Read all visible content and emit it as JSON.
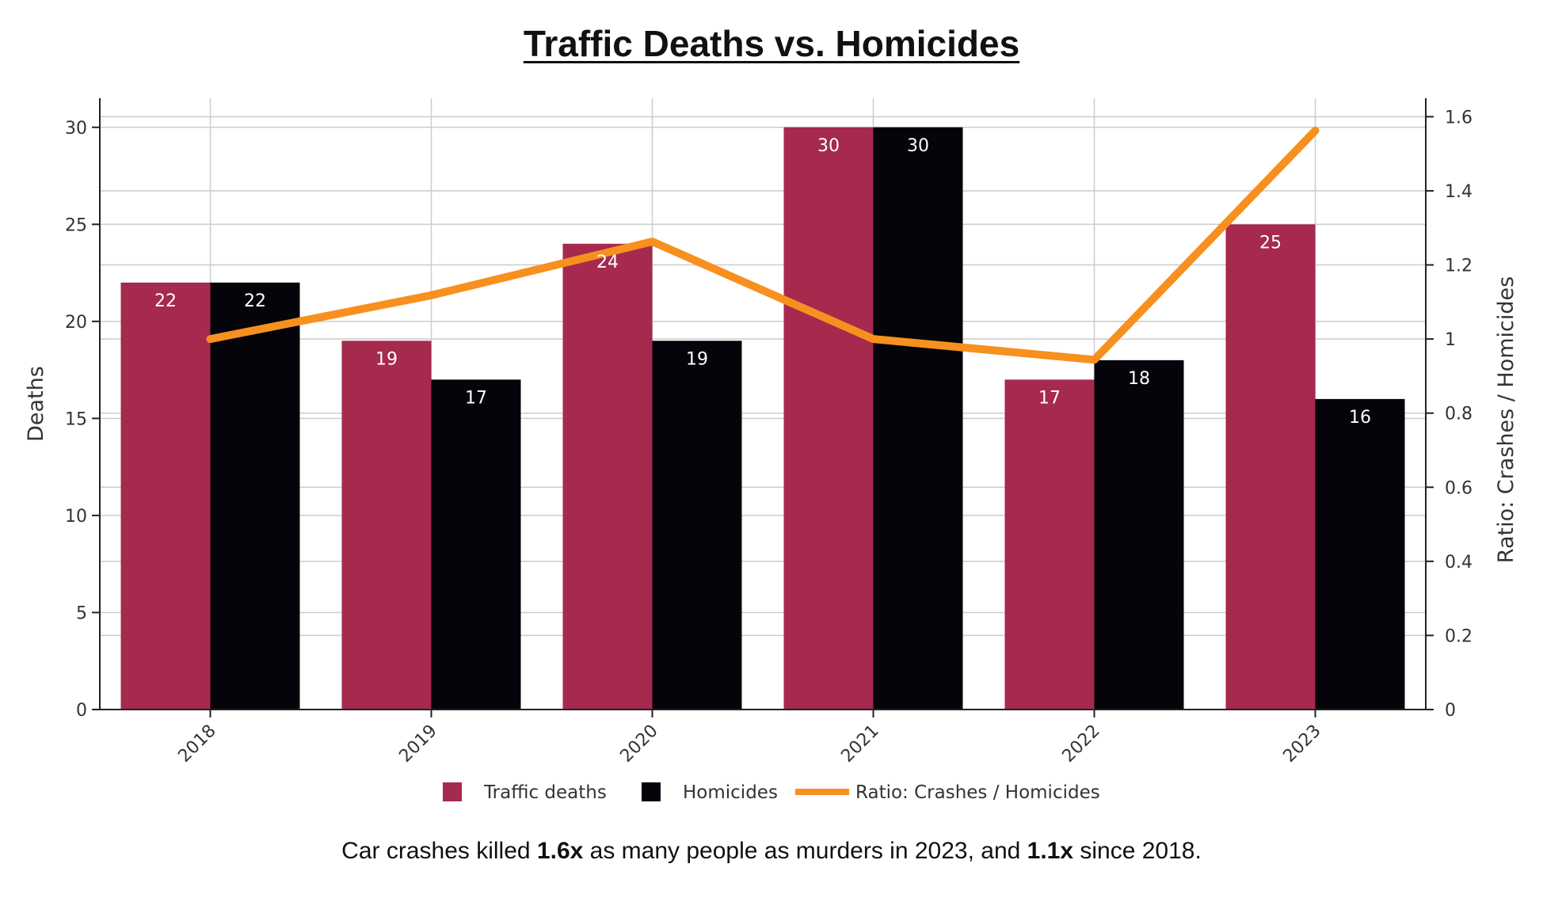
{
  "chart_data": {
    "type": "bar",
    "title": "Traffic Deaths vs. Homicides",
    "categories": [
      "2018",
      "2019",
      "2020",
      "2021",
      "2022",
      "2023"
    ],
    "series": [
      {
        "name": "Traffic deaths",
        "kind": "bar",
        "axis": "left",
        "color": "#a52a4d",
        "values": [
          22,
          19,
          24,
          30,
          17,
          25
        ]
      },
      {
        "name": "Homicides",
        "kind": "bar",
        "axis": "left",
        "color": "#05040a",
        "values": [
          22,
          17,
          19,
          30,
          18,
          16
        ]
      },
      {
        "name": "Ratio: Crashes / Homicides",
        "kind": "line",
        "axis": "right",
        "color": "#f7901e",
        "values": [
          1.0,
          1.118,
          1.263,
          1.0,
          0.944,
          1.5625
        ]
      }
    ],
    "xlabel": "",
    "ylabel": "Deaths",
    "y2label": "Ratio: Crashes / Homicides",
    "ylim": [
      0,
      31.5
    ],
    "y2lim": [
      0,
      1.65
    ],
    "yticks": [
      0,
      5,
      10,
      15,
      20,
      25,
      30
    ],
    "y2ticks": [
      0,
      0.2,
      0.4,
      0.6,
      0.8,
      1,
      1.2,
      1.4,
      1.6
    ],
    "y2tick_labels": [
      "0",
      "0.2",
      "0.4",
      "0.6",
      "0.8",
      "1",
      "1.2",
      "1.4",
      "1.6"
    ],
    "grid": true,
    "legend": "bottom-center",
    "x_tick_rotation": "-45"
  },
  "caption": {
    "prefix": "Car crashes killed ",
    "ratio_2023": "1.6x",
    "middle": " as many people as murders in 2023, and ",
    "ratio_since": "1.1x",
    "suffix": " since 2018."
  }
}
